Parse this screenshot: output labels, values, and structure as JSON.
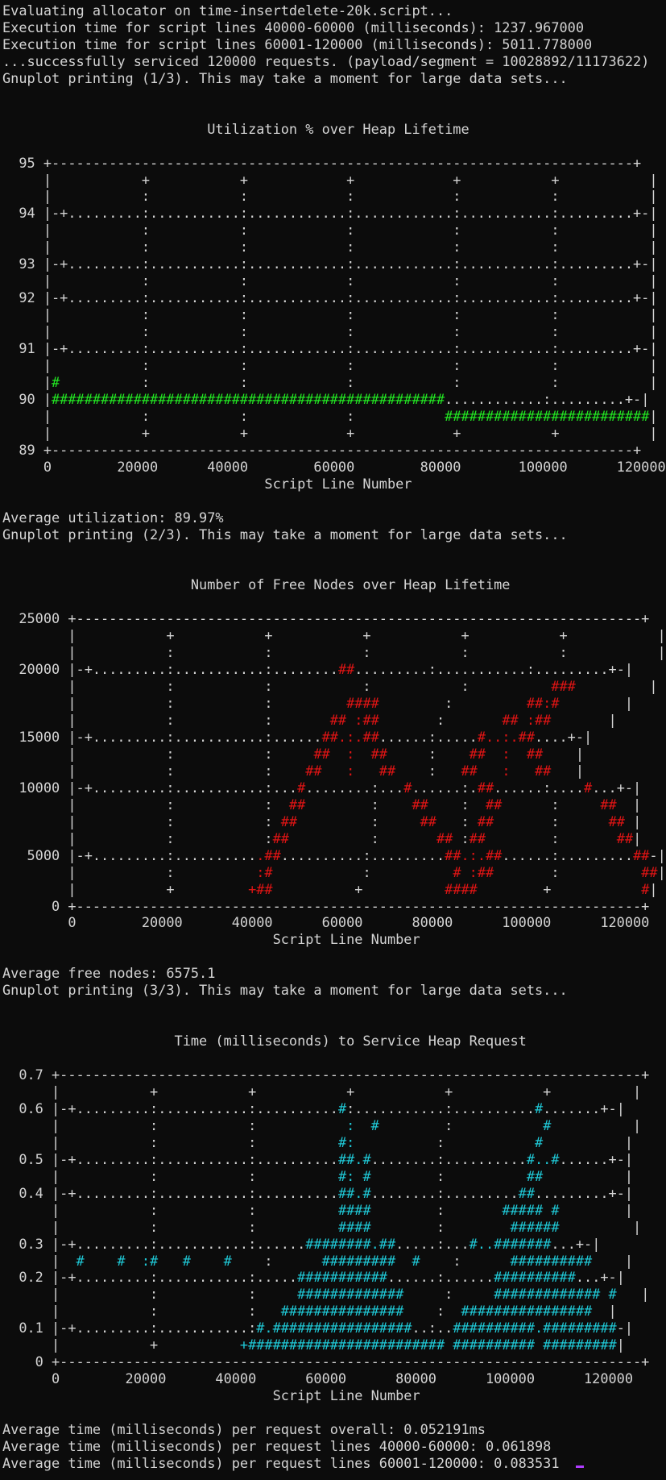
{
  "terminal": {
    "lines": [
      {
        "t": "Evaluating allocator on time-insertdelete-20k.script..."
      },
      {
        "t": "Execution time for script lines 40000-60000 (milliseconds): 1237.967000"
      },
      {
        "t": "Execution time for script lines 60001-120000 (milliseconds): 5011.778000"
      },
      {
        "t": "...successfully serviced 120000 requests. (payload/segment = 10028892/11173622)"
      },
      {
        "t": "Gnuplot printing (1/3). This may take a moment for large data sets..."
      },
      {
        "t": ""
      },
      {
        "t": ""
      },
      {
        "t": "                         Utilization % over Heap Lifetime"
      },
      {
        "t": ""
      },
      {
        "t": "  95 +-----------------------------------------------------------------------+"
      },
      {
        "t": "     |           +           +            +            +           +           |"
      },
      {
        "t": "     |           :           :            :            :           :           |"
      },
      {
        "t": "  94 |-+.........:...........:............:............:...........:.........+-|"
      },
      {
        "t": "     |           :           :            :            :           :           |"
      },
      {
        "t": "     |           :           :            :            :           :           |"
      },
      {
        "t": "  93 |-+.........:...........:............:............:...........:.........+-|"
      },
      {
        "t": "     |           :           :            :            :           :           |"
      },
      {
        "t": "  92 |-+.........:...........:............:............:...........:.........+-|"
      },
      {
        "t": "     |           :           :            :            :           :           |"
      },
      {
        "t": "     |           :           :            :            :           :           |"
      },
      {
        "t": "  91 |-+.........:...........:............:............:...........:.........+-|"
      },
      {
        "t": "     |           :           :            :            :           :           |"
      },
      {
        "t": "     |",
        "c": "#",
        "k": "g",
        "r": "          :           :            :            :           :           |"
      },
      {
        "t": "  90 |",
        "c": "################################################",
        "k": "g",
        "r": "............:.........+-|"
      },
      {
        "t": "     |           :           :            :           ",
        "c": "#########################",
        "k": "g",
        "r": "|"
      },
      {
        "t": "     |           +           +            +            +           +           |"
      },
      {
        "t": "  89 +-----------------------------------------------------------------------+"
      },
      {
        "t": "     0        20000      40000        60000        80000       100000      120000"
      },
      {
        "t": "                                Script Line Number"
      },
      {
        "t": ""
      },
      {
        "t": "Average utilization: 89.97%"
      },
      {
        "t": "Gnuplot printing (2/3). This may take a moment for large data sets..."
      },
      {
        "t": ""
      },
      {
        "t": ""
      },
      {
        "t": "                       Number of Free Nodes over Heap Lifetime"
      },
      {
        "t": ""
      },
      {
        "t": "  25000 +---------------------------------------------------------------------+"
      },
      {
        "t": "        |           +           +           +           +           +           |"
      },
      {
        "t": "        |           :           :           :           :           :           |"
      },
      {
        "t": "  20000 |-+.........:...........:........",
        "c": "##",
        "k": "r",
        "r": ".........:...........:.........+-|"
      },
      {
        "t": "        |           :           :           :           :          ",
        "c": "###",
        "k": "r",
        "r": "         |"
      },
      {
        "t": "        |           :           :         ",
        "c": "####",
        "k": "r",
        "r": "        :         ",
        "c2": "##:#",
        "r2": "        |"
      },
      {
        "t": "        |           :           :       ",
        "c": "## :##",
        "k": "r",
        "r": "       :       ",
        "c2": "## :##",
        "r2": "       |"
      },
      {
        "t": "  15000 |-+.........:...........:......",
        "c": "##.:.##",
        "k": "r",
        "r": "......:.....",
        "c2": "#..:.##",
        "r2": "....+-|"
      },
      {
        "t": "        |           :           :     ",
        "c": "##  :  ##",
        "k": "r",
        "r": "     :    ",
        "c2": "##  :  ##",
        "r2": "    |"
      },
      {
        "t": "        |           :           :    ",
        "c": "##   :   ##",
        "k": "r",
        "r": "    :   ",
        "c2": "##   :   ##",
        "r2": "   |"
      },
      {
        "t": "  10000 |-+.........:...........:...",
        "c": "#",
        "k": "r",
        "r": "........:...",
        "c2": "#",
        "r2": "......:.",
        "c3": "##",
        "r3": "......:....",
        "c4": "#",
        "r4": "...+-|"
      },
      {
        "t": "        |           :           :  ",
        "c": "##",
        "k": "r",
        "r": "        :    ",
        "c2": "##",
        "r2": "    :  ",
        "c3": "##",
        "r3": "      :     ",
        "c4": "##",
        "r4": "  |"
      },
      {
        "t": "        |           :           : ",
        "c": "##",
        "k": "r",
        "r": "         :     ",
        "c2": "##",
        "r2": "   : ",
        "c3": "##",
        "r3": "       :      ",
        "c4": "##",
        "r4": " |"
      },
      {
        "t": "        |           :           :",
        "c": "##",
        "k": "r",
        "r": "          :       ",
        "c2": "##",
        "r2": " :",
        "c3": "##",
        "r3": "        :       ",
        "c4": "##",
        "r4": "|"
      },
      {
        "t": "   5000 |-+.........:..........",
        "c": ".##",
        "k": "r",
        "r": "..........:.........",
        "c2": "##.:.##",
        "r2": "......:.........",
        "c3": "##",
        "r3": "-|"
      },
      {
        "t": "        |           :          ",
        "c": ":#",
        "k": "r",
        "r": "           :          ",
        "c2": "# :##",
        "r2": "       :          ",
        "c3": "##",
        "r3": "|"
      },
      {
        "t": "        |           +         ",
        "c": "+##",
        "k": "r",
        "r": "          +          ",
        "c2": "####",
        "r2": "        +           ",
        "c3": "#",
        "r3": "|"
      },
      {
        "t": "      0 +---------------------------------------------------------------------+"
      },
      {
        "t": "        0        20000      40000      60000      80000      100000      120000"
      },
      {
        "t": "                                 Script Line Number"
      },
      {
        "t": ""
      },
      {
        "t": "Average free nodes: 6575.1"
      },
      {
        "t": "Gnuplot printing (3/3). This may take a moment for large data sets..."
      },
      {
        "t": ""
      },
      {
        "t": ""
      },
      {
        "t": "                     Time (milliseconds) to Service Heap Request"
      },
      {
        "t": ""
      },
      {
        "t": "  0.7 +-----------------------------------------------------------------------+"
      },
      {
        "t": "      |           +           +           +           +           +          |"
      },
      {
        "t": "  0.6 |-+.........:...........:..........",
        "c": "#",
        "k": "c",
        "r": ":...........:..........",
        "c2": "#",
        "r2": ".......+-|"
      },
      {
        "t": "      |           :           :           ",
        "c": ":  #",
        "k": "c",
        "r": "        :           ",
        "c2": "#",
        "r2": "          |"
      },
      {
        "t": "      |           :           :          ",
        "c": "#:",
        "k": "c",
        "r": "          :           ",
        "c2": "#",
        "r2": "          |"
      },
      {
        "t": "  0.5 |-+.........:...........:..........",
        "c": "##.#",
        "k": "c",
        "r": "........:..........",
        "c2": "#..#",
        "r2": "......+-|"
      },
      {
        "t": "      |           :           :          ",
        "c": "#: #",
        "k": "c",
        "r": "        :          ",
        "c2": "##",
        "r2": "          |"
      },
      {
        "t": "  0.4 |-+.........:...........:..........",
        "c": "##.#",
        "k": "c",
        "r": "........:.........",
        "c2": "##",
        "r2": ".........+-|"
      },
      {
        "t": "      |           :           :          ",
        "c": "####",
        "k": "c",
        "r": "        :       ",
        "c2": "##### #",
        "r2": "        |"
      },
      {
        "t": "      |           :           :          ",
        "c": "####",
        "k": "c",
        "r": "        :        ",
        "c2": "######",
        "r2": "         |"
      },
      {
        "t": "  0.3 |-+.........:...........:......",
        "c": "########.##",
        "k": "c",
        "r": ".....:...",
        "c2": "#..#######",
        "r2": "...+-|"
      },
      {
        "t": "      |  ",
        "c": "#    #  :#   #    #",
        "k": "c",
        "r": "    :      ",
        "c2": "#########  #",
        "r2": "    :      ",
        "c3": "##########",
        "r3": "    |"
      },
      {
        "t": "  0.2 |-+.........:...........:.....",
        "c": "###########",
        "k": "c",
        "r": "......:......",
        "c2": "##########",
        "r2": "...+-|"
      },
      {
        "t": "      |           :           :     ",
        "c": "#############",
        "k": "c",
        "r": "     :     ",
        "c2": "############# #",
        "r2": "   |"
      },
      {
        "t": "      |           :           :   ",
        "c": "###############",
        "k": "c",
        "r": "    :  ",
        "c2": "################",
        "r2": "  |"
      },
      {
        "t": "  0.1 |-+.........:...........:",
        "c": "#.#################",
        "k": "c",
        "r": "..:..",
        "c2": "##########.#########",
        "r2": "-|"
      },
      {
        "t": "      |           +          ",
        "c": "+######################## ########## #########",
        "k": "c",
        "r": "|"
      },
      {
        "t": "    0 +-----------------------------------------------------------------------+"
      },
      {
        "t": "      0        20000      40000      60000      80000      100000      120000"
      },
      {
        "t": "                                 Script Line Number"
      },
      {
        "t": ""
      },
      {
        "t": "Average time (milliseconds) per request overall: 0.052191ms"
      },
      {
        "t": "Average time (milliseconds) per request lines 40000-60000: 0.061898"
      },
      {
        "t": "Average time (milliseconds) per request lines 60001-120000: 0.083531",
        "cursor": true
      }
    ]
  },
  "colors": {
    "background": "#0c0c0c",
    "foreground": "#d4d4d4",
    "plot1": "#22e622",
    "plot2": "#e01414",
    "plot3": "#1fc8d6",
    "cursor": "#b03cff"
  }
}
